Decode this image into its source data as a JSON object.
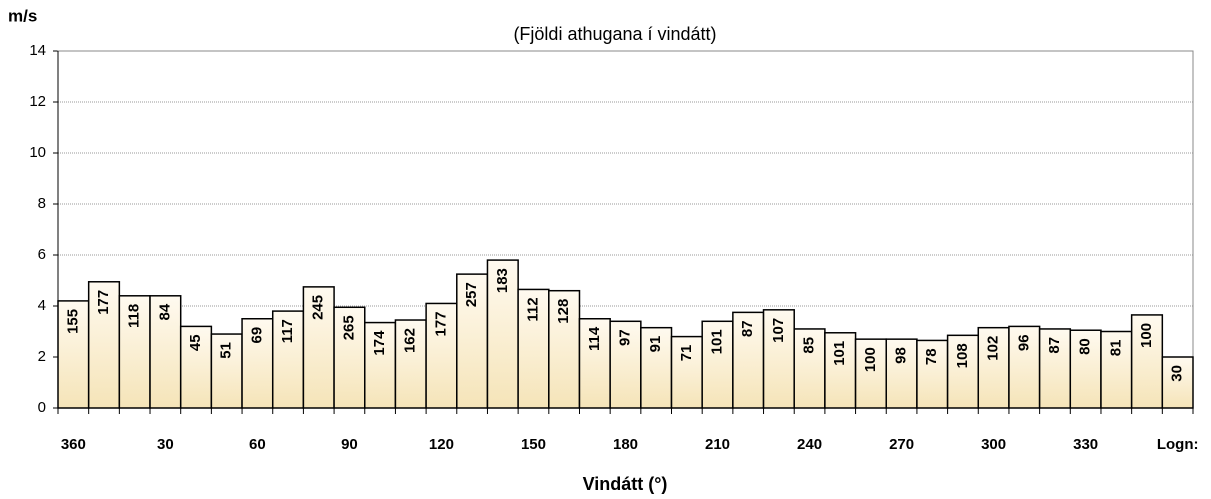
{
  "chart_data": {
    "type": "bar",
    "title": "(Fjöldi athugana í vindátt)",
    "y_axis_label": "m/s",
    "x_axis_label": "Vindátt (°)",
    "categories": [
      "360",
      null,
      null,
      "30",
      null,
      null,
      "60",
      null,
      null,
      "90",
      null,
      null,
      "120",
      null,
      null,
      "150",
      null,
      null,
      "180",
      null,
      null,
      "210",
      null,
      null,
      "240",
      null,
      null,
      "270",
      null,
      null,
      "300",
      null,
      null,
      "330",
      null,
      null,
      "Logn:"
    ],
    "series": [
      {
        "name": "m/s",
        "color": "#fdf1d2",
        "values": [
          4.2,
          4.95,
          4.4,
          4.4,
          3.2,
          2.9,
          3.5,
          3.8,
          4.75,
          3.95,
          3.35,
          3.45,
          4.1,
          5.25,
          5.8,
          4.65,
          4.6,
          3.5,
          3.4,
          3.15,
          2.8,
          3.4,
          3.75,
          3.85,
          3.1,
          2.95,
          2.7,
          2.7,
          2.65,
          2.85,
          3.15,
          3.2,
          3.1,
          3.05,
          3.0,
          3.65,
          2.0
        ]
      }
    ],
    "counts": [
      155,
      177,
      118,
      84,
      45,
      51,
      69,
      117,
      245,
      265,
      174,
      162,
      177,
      257,
      183,
      112,
      128,
      114,
      97,
      91,
      71,
      101,
      87,
      107,
      85,
      101,
      100,
      98,
      78,
      108,
      102,
      96,
      87,
      80,
      81,
      100,
      30
    ],
    "ylim": [
      0,
      14
    ],
    "yticks": [
      0,
      2,
      4,
      6,
      8,
      10,
      12,
      14
    ],
    "grid": true
  }
}
